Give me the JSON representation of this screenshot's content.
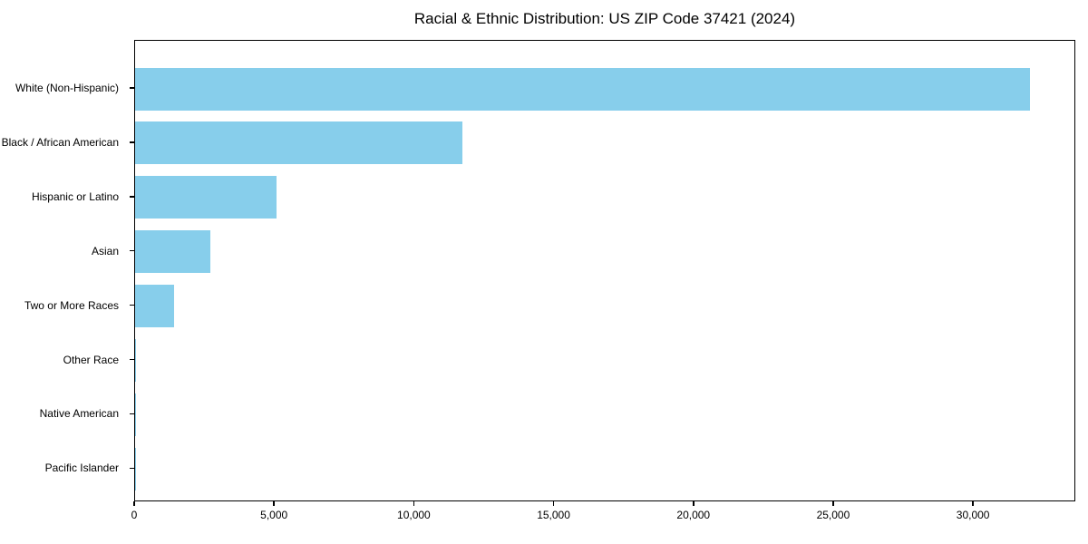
{
  "title": "Racial & Ethnic Distribution: US ZIP Code 37421 (2024)",
  "chart_data": {
    "type": "bar",
    "orientation": "horizontal",
    "title": "Racial & Ethnic Distribution: US ZIP Code 37421 (2024)",
    "categories": [
      "White (Non-Hispanic)",
      "Black / African American",
      "Hispanic or Latino",
      "Asian",
      "Two or More Races",
      "Other Race",
      "Native American",
      "Pacific Islander"
    ],
    "values": [
      32000,
      11700,
      5050,
      2700,
      1400,
      40,
      10,
      5
    ],
    "xlabel": "",
    "ylabel": "",
    "xlim": [
      0,
      33660
    ],
    "xticks": [
      0,
      5000,
      10000,
      15000,
      20000,
      25000,
      30000
    ],
    "xtick_labels": [
      "0",
      "5,000",
      "10,000",
      "15,000",
      "20,000",
      "25,000",
      "30,000"
    ],
    "bar_color": "#87CEEB",
    "grid": false,
    "legend": null,
    "background": "#ffffff",
    "spine_color": "#000000",
    "text_color": "#000000"
  }
}
